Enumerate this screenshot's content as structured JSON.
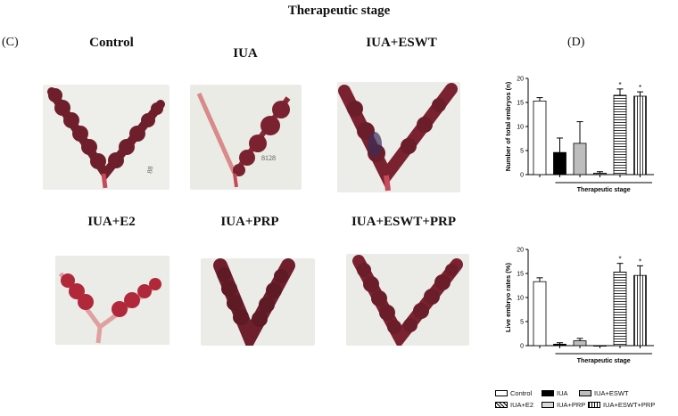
{
  "figure": {
    "title": "Therapeutic stage",
    "panel_c_label": "(C)",
    "panel_d_label": "(D)"
  },
  "images": [
    {
      "label": "Control"
    },
    {
      "label": "IUA"
    },
    {
      "label": "IUA+ESWT"
    },
    {
      "label": "IUA+E2"
    },
    {
      "label": "IUA+PRP"
    },
    {
      "label": "IUA+ESWT+PRP"
    }
  ],
  "colors": {
    "tissue_dark": "#6e1f2b",
    "tissue_red": "#b0283a",
    "tissue_pink": "#d98a8a",
    "paper": "#eeeeea",
    "bar_black": "#000000",
    "bar_gray": "#bdbdbd",
    "bar_white": "#ffffff"
  },
  "chart_data": [
    {
      "type": "bar",
      "ylabel": "Number of total embryos (n)",
      "ylim": [
        0,
        20
      ],
      "yticks": [
        0,
        5,
        10,
        15,
        20
      ],
      "bracket_label": "Therapeutic stage",
      "categories": [
        "Control",
        "IUA",
        "IUA+PRP",
        "IUA+E2",
        "IUA+ESWT",
        "IUA+ESWT+PRP"
      ],
      "values": [
        15.3,
        4.6,
        6.5,
        0.3,
        16.5,
        16.3
      ],
      "errors": [
        0.7,
        3.0,
        4.5,
        0.3,
        1.3,
        0.9
      ],
      "significance": [
        "",
        "",
        "",
        "",
        "*",
        "*"
      ]
    },
    {
      "type": "bar",
      "ylabel": "Live embryo rates (%)",
      "ylim": [
        0,
        20
      ],
      "yticks": [
        0,
        5,
        10,
        15,
        20
      ],
      "bracket_label": "Therapeutic stage",
      "categories": [
        "Control",
        "IUA",
        "IUA+PRP",
        "IUA+E2",
        "IUA+ESWT",
        "IUA+ESWT+PRP"
      ],
      "values": [
        13.3,
        0.3,
        1.0,
        0.0,
        15.3,
        14.6
      ],
      "errors": [
        0.8,
        0.3,
        0.5,
        0.0,
        1.8,
        2.0
      ],
      "significance": [
        "",
        "",
        "",
        "",
        "*",
        "*"
      ]
    }
  ],
  "legend": [
    {
      "label": "Control",
      "fill": "white"
    },
    {
      "label": "IUA",
      "fill": "black"
    },
    {
      "label": "IUA+ESWT",
      "fill": "gray"
    },
    {
      "label": "IUA+E2",
      "fill": "crosshatch"
    },
    {
      "label": "IUA+PRP",
      "fill": "lightgray"
    },
    {
      "label": "IUA+ESWT+PRP",
      "fill": "vertical"
    }
  ]
}
